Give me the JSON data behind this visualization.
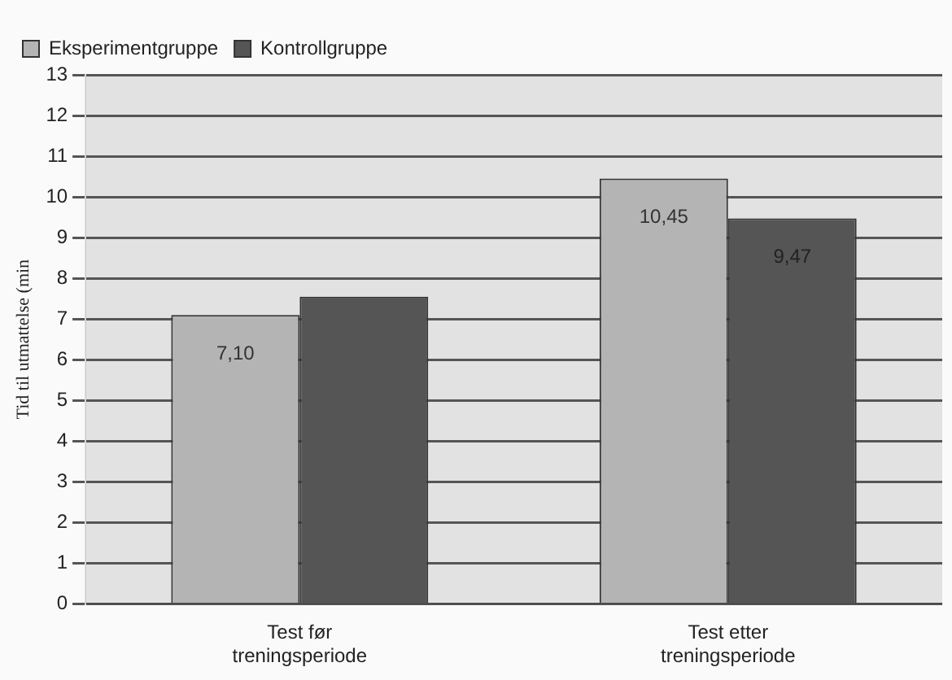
{
  "chart_data": {
    "type": "bar",
    "ylabel": "Tid til utmattelse (min",
    "categories": [
      "Test før\ntreningsperiode",
      "Test etter\ntreningsperiode"
    ],
    "series": [
      {
        "name": "Eksperimentgruppe",
        "color": "#b4b4b4",
        "values": [
          7.1,
          10.45
        ],
        "value_labels": [
          "7,10",
          "10,45"
        ]
      },
      {
        "name": "Kontrollgruppe",
        "color": "#555555",
        "values": [
          7.55,
          9.47
        ],
        "value_labels": [
          null,
          "9,47"
        ]
      }
    ],
    "ylim": [
      0,
      13
    ],
    "yticks": [
      0,
      1,
      2,
      3,
      4,
      5,
      6,
      7,
      8,
      9,
      10,
      11,
      12,
      13
    ],
    "grid": "y",
    "legend": "top left"
  }
}
